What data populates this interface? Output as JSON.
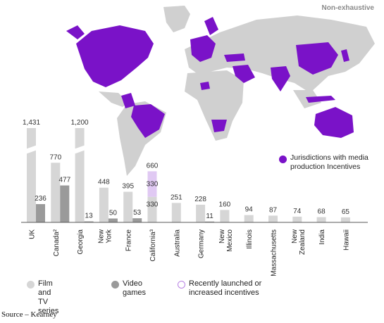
{
  "map": {
    "note": "Non-exhaustive",
    "legend_label": "Jurisdictions with media production Incentives",
    "colors": {
      "land": "#d0d0d0",
      "highlight": "#7a12c8"
    }
  },
  "colors": {
    "film_tv": "#d6d6d6",
    "video_games": "#9a9a9a",
    "recent": "#e0c9f3",
    "recent_border": "#b781e3",
    "axis": "#555555",
    "grid": "#cccccc"
  },
  "legend": {
    "film_tv": "Film and TV series",
    "video_games": "Video games",
    "recent": "Recently launched or increased incentives"
  },
  "source": "Source – Kearney",
  "chart_data": {
    "type": "bar",
    "categories": [
      "UK",
      "Canada²",
      "Georgia",
      "New York",
      "France",
      "California³",
      "Australia",
      "Germany",
      "New Mexico",
      "Illinois",
      "Massachusetts",
      "New Zealand",
      "India",
      "Hawaii"
    ],
    "series": [
      {
        "name": "Film and TV series",
        "values": [
          1431,
          770,
          1200,
          448,
          395,
          330,
          251,
          228,
          160,
          94,
          87,
          74,
          68,
          65
        ]
      },
      {
        "name": "Video games",
        "values": [
          236,
          477,
          13,
          50,
          53,
          null,
          null,
          11,
          null,
          null,
          null,
          null,
          null,
          null
        ]
      },
      {
        "name": "Recently launched or increased incentives",
        "values": [
          null,
          null,
          null,
          null,
          null,
          330,
          null,
          null,
          null,
          null,
          null,
          null,
          null,
          null
        ]
      }
    ],
    "stack_labels": {
      "5": "660"
    },
    "axis_break": true,
    "legend_position": "bottom"
  }
}
